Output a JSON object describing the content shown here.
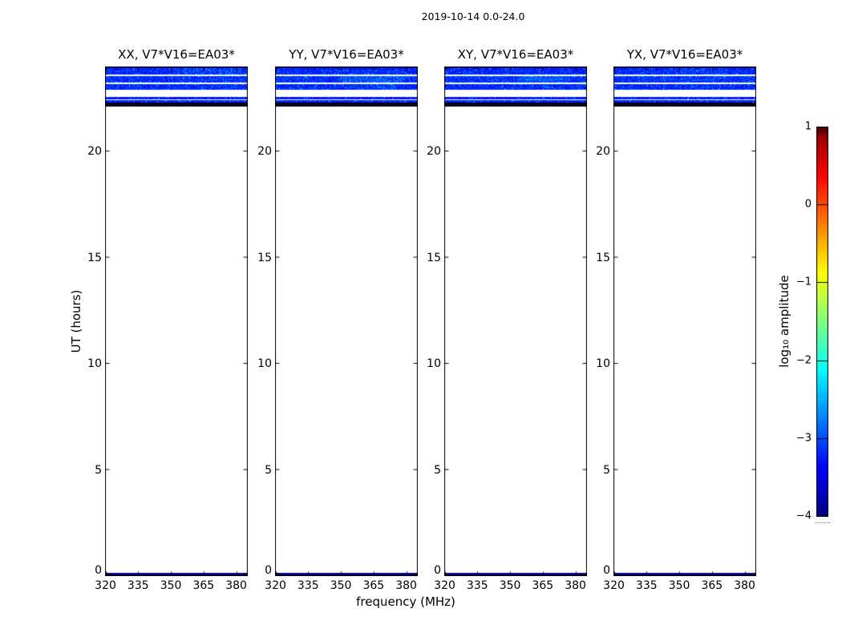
{
  "figure_title": "2019-10-14 0.0-24.0",
  "chart_data": {
    "type": "heatmap",
    "description": "Four dynamic-spectrum (waterfall) panels of correlation amplitude vs frequency and time; data present only near the top (UT ~22.1-24.0 h) and a thin strip at UT ~0 h; rest of the day is blank.",
    "xlabel": "frequency (MHz)",
    "ylabel": "UT (hours)",
    "x_ticks": [
      320,
      335,
      350,
      365,
      380
    ],
    "x_range": [
      319.8,
      385.3
    ],
    "y_ticks": [
      0,
      5,
      10,
      15,
      20
    ],
    "y_range": [
      0,
      24
    ],
    "grid": false,
    "colormap": "jet",
    "panels": [
      {
        "title": "XX, V7*V16=EA03*",
        "hot_regions": [
          {
            "band": 0,
            "x0": 0.55,
            "x1": 0.95,
            "boost": 0.35
          }
        ]
      },
      {
        "title": "YY, V7*V16=EA03*",
        "hot_regions": [
          {
            "band": 1,
            "x0": 0.46,
            "x1": 0.91,
            "boost": 0.55
          },
          {
            "band": 2,
            "x0": 0.5,
            "x1": 0.85,
            "boost": 0.3
          }
        ]
      },
      {
        "title": "XY, V7*V16=EA03*",
        "hot_regions": [
          {
            "band": 1,
            "x0": 0.51,
            "x1": 0.88,
            "boost": 0.55
          }
        ]
      },
      {
        "title": "YX, V7*V16=EA03*",
        "hot_regions": [
          {
            "band": 0,
            "x0": 0.4,
            "x1": 0.8,
            "boost": 0.3
          }
        ]
      }
    ],
    "bands": [
      {
        "t_start": 23.64,
        "t_end": 24.0,
        "kind": "noise",
        "mean_log10_amp": -3.2,
        "sigma": 0.3
      },
      {
        "t_start": 23.26,
        "t_end": 23.53,
        "kind": "noise",
        "mean_log10_amp": -3.15,
        "sigma": 0.3
      },
      {
        "t_start": 22.92,
        "t_end": 23.17,
        "kind": "noise",
        "mean_log10_amp": -3.2,
        "sigma": 0.3
      },
      {
        "t_start": 22.47,
        "t_end": 22.58,
        "kind": "noise",
        "mean_log10_amp": -3.3,
        "sigma": 0.25
      },
      {
        "t_start": 22.32,
        "t_end": 22.43,
        "kind": "noise",
        "mean_log10_amp": -3.25,
        "sigma": 0.25
      },
      {
        "t_start": 22.13,
        "t_end": 22.32,
        "kind": "black",
        "mean_log10_amp": -4.3,
        "sigma": 0.05
      },
      {
        "t_start": 0.0,
        "t_end": 0.15,
        "kind": "navy",
        "mean_log10_amp": -3.95,
        "sigma": 0.05
      }
    ],
    "colorbar": {
      "label": "log₁₀ amplitude",
      "ticks": [
        1,
        0,
        -1,
        -2,
        -3,
        -4
      ],
      "range": [
        -4,
        1
      ]
    }
  }
}
